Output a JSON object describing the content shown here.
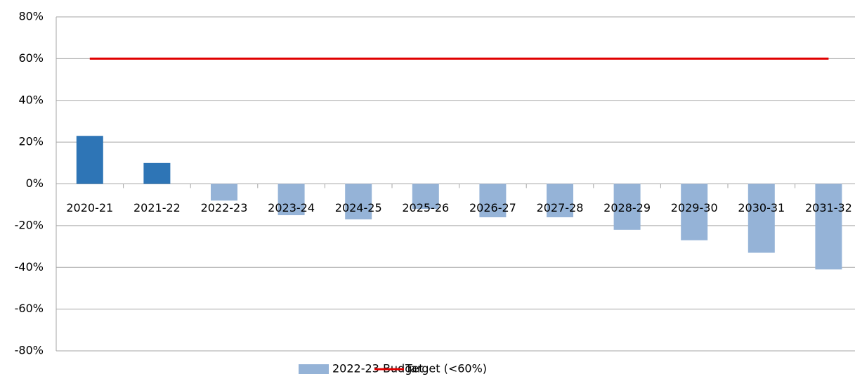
{
  "chart_data": {
    "type": "bar",
    "categories": [
      "2020-21",
      "2021-22",
      "2022-23",
      "2023-24",
      "2024-25",
      "2025-26",
      "2026-27",
      "2027-28",
      "2028-29",
      "2029-30",
      "2030-31",
      "2031-32"
    ],
    "series": [
      {
        "name": "2022-23 Budget",
        "type": "bar",
        "color": "#95b3d7",
        "point_colors": [
          "#2e75b6",
          "#2e75b6",
          "#95b3d7",
          "#95b3d7",
          "#95b3d7",
          "#95b3d7",
          "#95b3d7",
          "#95b3d7",
          "#95b3d7",
          "#95b3d7",
          "#95b3d7",
          "#95b3d7"
        ],
        "values": [
          23,
          10,
          -8,
          -15,
          -17,
          -12,
          -16,
          -16,
          -22,
          -27,
          -33,
          -41
        ]
      },
      {
        "name": "Target (<60%)",
        "type": "line",
        "color": "#e00000",
        "values": [
          60,
          60,
          60,
          60,
          60,
          60,
          60,
          60,
          60,
          60,
          60,
          60
        ]
      }
    ],
    "ylim": [
      -80,
      80
    ],
    "yticks": [
      {
        "value": -80,
        "label": "-80%"
      },
      {
        "value": -60,
        "label": "-60%"
      },
      {
        "value": -40,
        "label": "-40%"
      },
      {
        "value": -20,
        "label": "-20%"
      },
      {
        "value": 0,
        "label": "0%"
      },
      {
        "value": 20,
        "label": "20%"
      },
      {
        "value": 40,
        "label": "40%"
      },
      {
        "value": 60,
        "label": "60%"
      },
      {
        "value": 80,
        "label": "80%"
      }
    ],
    "grid": true,
    "legend": "bottom"
  }
}
